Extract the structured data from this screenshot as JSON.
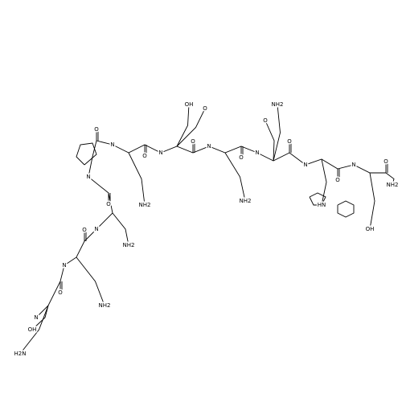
{
  "molecule": {
    "backbone_labels": [
      "N",
      "O",
      "N",
      "O",
      "N",
      "O",
      "N",
      "O",
      "N",
      "O",
      "N",
      "O",
      "N",
      "O",
      "N",
      "O",
      "N",
      "O",
      "N",
      "O"
    ],
    "side_chain_labels": [
      "H2N",
      "OH",
      "NH2",
      "NH2",
      "NH2",
      "OH",
      "O",
      "NH2",
      "NH2",
      "O",
      "HN",
      "OH",
      "NH2"
    ]
  }
}
